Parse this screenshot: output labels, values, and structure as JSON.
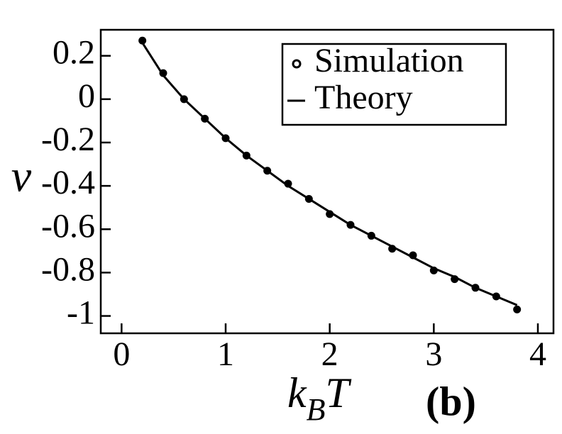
{
  "chart_data": {
    "type": "line",
    "ylabel": "v",
    "xlabel": [
      "k",
      "B",
      "T"
    ],
    "annotation": "(b)",
    "x": [
      0.2,
      0.4,
      0.6,
      0.8,
      1.0,
      1.2,
      1.4,
      1.6,
      1.8,
      2.0,
      2.2,
      2.4,
      2.6,
      2.8,
      3.0,
      3.2,
      3.4,
      3.6,
      3.8
    ],
    "series": [
      {
        "name": "Simulation",
        "color": "#000000",
        "marker": "circle",
        "values": [
          0.27,
          0.12,
          0.0,
          -0.09,
          -0.18,
          -0.26,
          -0.33,
          -0.39,
          -0.46,
          -0.53,
          -0.58,
          -0.63,
          -0.69,
          -0.72,
          -0.79,
          -0.83,
          -0.87,
          -0.91,
          -0.97
        ]
      },
      {
        "name": "Theory",
        "color": "#000000",
        "marker": "none",
        "values": [
          0.26,
          0.11,
          0.0,
          -0.09,
          -0.18,
          -0.26,
          -0.33,
          -0.4,
          -0.46,
          -0.52,
          -0.58,
          -0.63,
          -0.68,
          -0.73,
          -0.78,
          -0.82,
          -0.87,
          -0.91,
          -0.95
        ]
      }
    ],
    "xlim": [
      -0.2,
      4.15
    ],
    "ylim": [
      -1.08,
      0.32
    ],
    "xticks": [
      0,
      1,
      2,
      3,
      4
    ],
    "yticks": [
      0.2,
      0,
      -0.2,
      -0.4,
      -0.6,
      -0.8,
      -1
    ],
    "grid": false,
    "legend": "upper right"
  }
}
